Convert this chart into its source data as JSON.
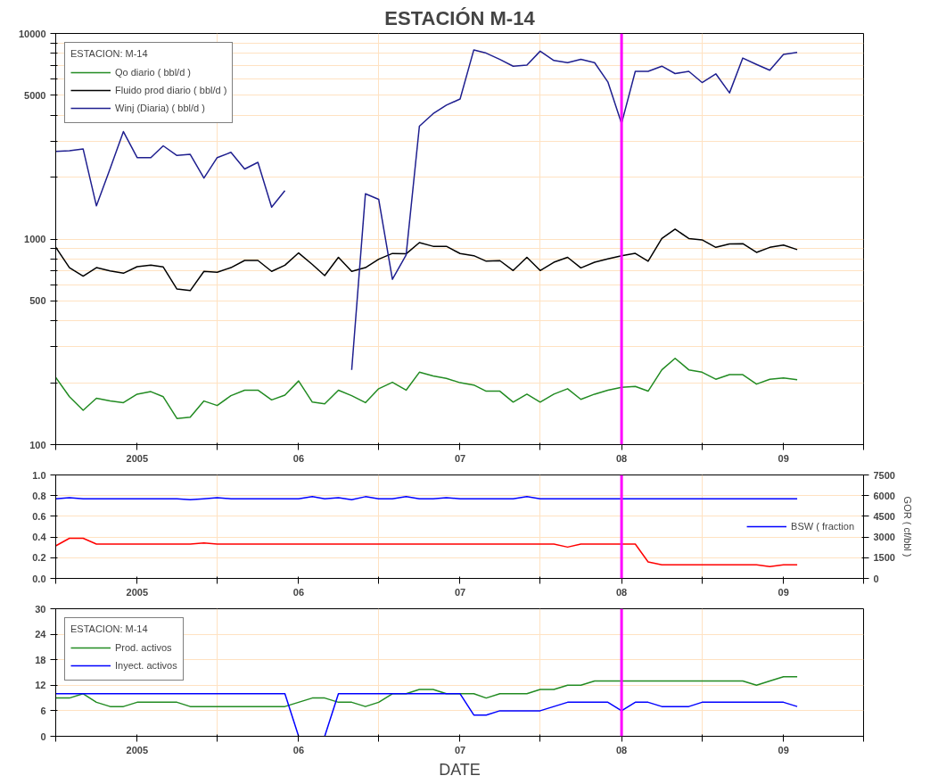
{
  "chart_data": [
    {
      "type": "line",
      "title": "ESTACIÓN M-14",
      "log": true,
      "grid": true,
      "legend": "top left",
      "legend_title": "ESTACION: M-14",
      "x": [
        "2004-07",
        "2004-08",
        "2004-09",
        "2004-10",
        "2004-11",
        "2004-12",
        "2005-01",
        "2005-02",
        "2005-03",
        "2005-04",
        "2005-05",
        "2005-06",
        "2005-07",
        "2005-08",
        "2005-09",
        "2005-10",
        "2005-11",
        "2005-12",
        "2006-01",
        "2006-02",
        "2006-03",
        "2006-04",
        "2006-05",
        "2006-06",
        "2006-07",
        "2006-08",
        "2006-09",
        "2006-10",
        "2006-11",
        "2006-12",
        "2007-01",
        "2007-02",
        "2007-03",
        "2007-04",
        "2007-05",
        "2007-06",
        "2007-07",
        "2007-08",
        "2007-09",
        "2007-10",
        "2007-11",
        "2007-12",
        "2008-01",
        "2008-02",
        "2008-03",
        "2008-04",
        "2008-05",
        "2008-06",
        "2008-07",
        "2008-08",
        "2008-09",
        "2008-10",
        "2008-11",
        "2008-12",
        "2009-01",
        "2009-02"
      ],
      "xlim": [
        "2004-07",
        "2009-07"
      ],
      "xticks": [
        {
          "value": "2004-07",
          "label": null
        },
        {
          "value": "2005-01",
          "label": "2005"
        },
        {
          "value": "2005-07",
          "label": null
        },
        {
          "value": "2006-01",
          "label": "06"
        },
        {
          "value": "2006-07",
          "label": null
        },
        {
          "value": "2007-01",
          "label": "07"
        },
        {
          "value": "2007-07",
          "label": null
        },
        {
          "value": "2008-01",
          "label": "08"
        },
        {
          "value": "2008-07",
          "label": null
        },
        {
          "value": "2009-01",
          "label": "09"
        },
        {
          "value": "2009-07",
          "label": null
        }
      ],
      "ylim": [
        100,
        10000
      ],
      "yticks": [
        100,
        {
          "value": 200,
          "label": null
        },
        {
          "value": 300,
          "label": null
        },
        {
          "value": 400,
          "label": null
        },
        500,
        {
          "value": 600,
          "label": null
        },
        {
          "value": 700,
          "label": null
        },
        {
          "value": 800,
          "label": null
        },
        {
          "value": 900,
          "label": null
        },
        1000,
        {
          "value": 2000,
          "label": null
        },
        {
          "value": 3000,
          "label": null
        },
        {
          "value": 4000,
          "label": null
        },
        5000,
        {
          "value": 6000,
          "label": null
        },
        {
          "value": 7000,
          "label": null
        },
        {
          "value": 8000,
          "label": null
        },
        {
          "value": 9000,
          "label": null
        },
        10000
      ],
      "ref_lines": [
        {
          "axis": "x",
          "value": "2008-01",
          "label": null,
          "color": "#ff00ff"
        }
      ],
      "series": [
        {
          "name": "Qo diario ( bbl/d )",
          "color": "#228b22",
          "values": [
            212,
            171,
            147,
            168,
            163,
            160,
            176,
            181,
            171,
            134,
            136,
            163,
            155,
            173,
            184,
            184,
            165,
            174,
            204,
            161,
            158,
            184,
            173,
            160,
            187,
            201,
            184,
            225,
            216,
            210,
            200,
            195,
            182,
            182,
            161,
            176,
            161,
            176,
            187,
            166,
            176,
            184,
            190,
            192,
            182,
            231,
            263,
            231,
            225,
            208,
            219,
            219,
            197,
            208,
            211,
            207
          ]
        },
        {
          "name": "Fluido prod diario ( bbl/d )",
          "color": "#000000",
          "values": [
            912,
            726,
            660,
            726,
            700,
            682,
            734,
            746,
            731,
            571,
            561,
            696,
            689,
            726,
            787,
            787,
            696,
            746,
            856,
            752,
            664,
            815,
            696,
            726,
            798,
            851,
            847,
            961,
            922,
            922,
            850,
            830,
            780,
            785,
            703,
            815,
            703,
            771,
            815,
            724,
            771,
            801,
            830,
            852,
            780,
            1006,
            1117,
            1006,
            991,
            911,
            946,
            950,
            861,
            911,
            934,
            888
          ]
        },
        {
          "name": "Winj (Diaria) ( bbl/d )",
          "color": "#1f1f8f",
          "values": [
            2670,
            2690,
            2740,
            1450,
            2200,
            3330,
            2490,
            2490,
            2840,
            2550,
            2580,
            1980,
            2490,
            2640,
            2190,
            2360,
            1430,
            1720,
            null,
            null,
            null,
            null,
            231,
            1660,
            1560,
            637,
            836,
            3540,
            4070,
            4480,
            4800,
            8320,
            8020,
            7480,
            6930,
            7020,
            8200,
            7390,
            7210,
            7480,
            7210,
            5810,
            3650,
            6540,
            6540,
            6930,
            6380,
            6540,
            5770,
            6360,
            5140,
            7590,
            7070,
            6620,
            7900,
            8080
          ]
        }
      ]
    },
    {
      "type": "line",
      "grid": true,
      "legend": "right",
      "y2label": "GOR ( cf/bbl )",
      "x": [
        "2004-07",
        "2004-08",
        "2004-09",
        "2004-10",
        "2004-11",
        "2004-12",
        "2005-01",
        "2005-02",
        "2005-03",
        "2005-04",
        "2005-05",
        "2005-06",
        "2005-07",
        "2005-08",
        "2005-09",
        "2005-10",
        "2005-11",
        "2005-12",
        "2006-01",
        "2006-02",
        "2006-03",
        "2006-04",
        "2006-05",
        "2006-06",
        "2006-07",
        "2006-08",
        "2006-09",
        "2006-10",
        "2006-11",
        "2006-12",
        "2007-01",
        "2007-02",
        "2007-03",
        "2007-04",
        "2007-05",
        "2007-06",
        "2007-07",
        "2007-08",
        "2007-09",
        "2007-10",
        "2007-11",
        "2007-12",
        "2008-01",
        "2008-02",
        "2008-03",
        "2008-04",
        "2008-05",
        "2008-06",
        "2008-07",
        "2008-08",
        "2008-09",
        "2008-10",
        "2008-11",
        "2008-12",
        "2009-01",
        "2009-02"
      ],
      "xlim": [
        "2004-07",
        "2009-07"
      ],
      "xticks": [
        {
          "value": "2004-07",
          "label": null
        },
        {
          "value": "2005-01",
          "label": "2005"
        },
        {
          "value": "2005-07",
          "label": null
        },
        {
          "value": "2006-01",
          "label": "06"
        },
        {
          "value": "2006-07",
          "label": null
        },
        {
          "value": "2007-01",
          "label": "07"
        },
        {
          "value": "2007-07",
          "label": null
        },
        {
          "value": "2008-01",
          "label": "08"
        },
        {
          "value": "2008-07",
          "label": null
        },
        {
          "value": "2009-01",
          "label": "09"
        },
        {
          "value": "2009-07",
          "label": null
        }
      ],
      "ylim": [
        0,
        1
      ],
      "yticks": [
        {
          "value": 0,
          "label": "0.0"
        },
        {
          "value": 0.2,
          "label": "0.2"
        },
        {
          "value": 0.4,
          "label": "0.4"
        },
        {
          "value": 0.6,
          "label": "0.6"
        },
        {
          "value": 0.8,
          "label": "0.8"
        },
        {
          "value": 1,
          "label": "1.0"
        }
      ],
      "y2lim": [
        0,
        7500
      ],
      "y2ticks": [
        0,
        1500,
        3000,
        4500,
        6000,
        7500
      ],
      "ref_lines": [
        {
          "axis": "x",
          "value": "2008-01",
          "label": null,
          "color": "#ff00ff"
        }
      ],
      "series": [
        {
          "name": "BSW ( fraction",
          "color": "#0000ff",
          "values": [
            0.77,
            0.78,
            0.77,
            0.77,
            0.77,
            0.77,
            0.77,
            0.77,
            0.77,
            0.77,
            0.76,
            0.77,
            0.78,
            0.77,
            0.77,
            0.77,
            0.77,
            0.77,
            0.77,
            0.79,
            0.77,
            0.78,
            0.76,
            0.79,
            0.77,
            0.77,
            0.79,
            0.77,
            0.77,
            0.78,
            0.77,
            0.77,
            0.77,
            0.77,
            0.77,
            0.79,
            0.77,
            0.77,
            0.77,
            0.77,
            0.77,
            0.77,
            0.77,
            0.77,
            0.77,
            0.77,
            0.77,
            0.77,
            0.77,
            0.77,
            0.77,
            0.77,
            0.77,
            0.77,
            0.77,
            0.77
          ]
        },
        {
          "axis": "y2",
          "color": "#ff0000",
          "values": [
            2360,
            2910,
            2910,
            2490,
            2490,
            2490,
            2490,
            2490,
            2490,
            2490,
            2490,
            2570,
            2490,
            2490,
            2490,
            2490,
            2490,
            2490,
            2490,
            2490,
            2490,
            2490,
            2490,
            2490,
            2490,
            2490,
            2490,
            2490,
            2490,
            2490,
            2490,
            2490,
            2490,
            2490,
            2490,
            2490,
            2490,
            2490,
            2270,
            2490,
            2490,
            2490,
            2490,
            2490,
            1200,
            990,
            990,
            990,
            990,
            990,
            990,
            990,
            990,
            860,
            990,
            990
          ]
        }
      ]
    },
    {
      "type": "line",
      "grid": true,
      "legend": "top left",
      "legend_title": "ESTACION: M-14",
      "xlabel": "DATE",
      "x": [
        "2004-07",
        "2004-08",
        "2004-09",
        "2004-10",
        "2004-11",
        "2004-12",
        "2005-01",
        "2005-02",
        "2005-03",
        "2005-04",
        "2005-05",
        "2005-06",
        "2005-07",
        "2005-08",
        "2005-09",
        "2005-10",
        "2005-11",
        "2005-12",
        "2006-01",
        "2006-02",
        "2006-03",
        "2006-04",
        "2006-05",
        "2006-06",
        "2006-07",
        "2006-08",
        "2006-09",
        "2006-10",
        "2006-11",
        "2006-12",
        "2007-01",
        "2007-02",
        "2007-03",
        "2007-04",
        "2007-05",
        "2007-06",
        "2007-07",
        "2007-08",
        "2007-09",
        "2007-10",
        "2007-11",
        "2007-12",
        "2008-01",
        "2008-02",
        "2008-03",
        "2008-04",
        "2008-05",
        "2008-06",
        "2008-07",
        "2008-08",
        "2008-09",
        "2008-10",
        "2008-11",
        "2008-12",
        "2009-01",
        "2009-02"
      ],
      "xlim": [
        "2004-07",
        "2009-07"
      ],
      "xticks": [
        {
          "value": "2004-07",
          "label": null
        },
        {
          "value": "2005-01",
          "label": "2005"
        },
        {
          "value": "2005-07",
          "label": null
        },
        {
          "value": "2006-01",
          "label": "06"
        },
        {
          "value": "2006-07",
          "label": null
        },
        {
          "value": "2007-01",
          "label": "07"
        },
        {
          "value": "2007-07",
          "label": null
        },
        {
          "value": "2008-01",
          "label": "08"
        },
        {
          "value": "2008-07",
          "label": null
        },
        {
          "value": "2009-01",
          "label": "09"
        },
        {
          "value": "2009-07",
          "label": null
        }
      ],
      "ylim": [
        0,
        30
      ],
      "yticks": [
        0,
        6,
        12,
        18,
        24,
        30
      ],
      "ref_lines": [
        {
          "axis": "x",
          "value": "2008-01",
          "label": null,
          "color": "#ff00ff"
        }
      ],
      "series": [
        {
          "name": "Prod. activos",
          "color": "#228b22",
          "values": [
            9,
            9,
            10,
            8,
            7,
            7,
            8,
            8,
            8,
            8,
            7,
            7,
            7,
            7,
            7,
            7,
            7,
            7,
            8,
            9,
            9,
            8,
            8,
            7,
            8,
            10,
            10,
            11,
            11,
            10,
            10,
            10,
            9,
            10,
            10,
            10,
            11,
            11,
            12,
            12,
            13,
            13,
            13,
            13,
            13,
            13,
            13,
            13,
            13,
            13,
            13,
            13,
            12,
            13,
            14,
            14
          ]
        },
        {
          "name": "Inyect. activos",
          "color": "#0000ff",
          "values": [
            10,
            10,
            10,
            10,
            10,
            10,
            10,
            10,
            10,
            10,
            10,
            10,
            10,
            10,
            10,
            10,
            10,
            10,
            0,
            null,
            0,
            10,
            10,
            10,
            10,
            10,
            10,
            10,
            10,
            10,
            10,
            5,
            5,
            6,
            6,
            6,
            6,
            7,
            8,
            8,
            8,
            8,
            6,
            8,
            8,
            7,
            7,
            7,
            8,
            8,
            8,
            8,
            8,
            8,
            8,
            7
          ]
        }
      ]
    }
  ]
}
